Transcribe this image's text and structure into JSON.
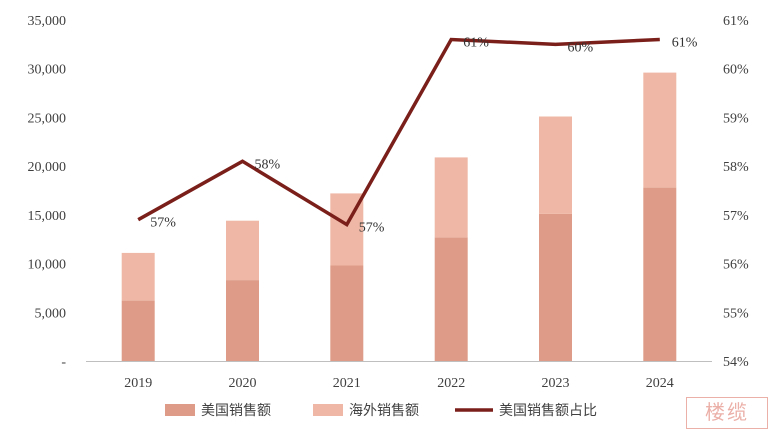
{
  "chart_data": {
    "type": "bar",
    "categories": [
      "2019",
      "2020",
      "2021",
      "2022",
      "2023",
      "2024"
    ],
    "series": [
      {
        "name": "美国销售额",
        "type": "bar",
        "stack": "sales",
        "axis": "left",
        "color": "#de9c88",
        "values": [
          6200,
          8300,
          9800,
          12700,
          15100,
          17800
        ]
      },
      {
        "name": "海外销售额",
        "type": "bar",
        "stack": "sales",
        "axis": "left",
        "color": "#efb8a6",
        "values": [
          4900,
          6100,
          7400,
          8200,
          10000,
          11800
        ]
      },
      {
        "name": "美国销售额占比",
        "type": "line",
        "axis": "right",
        "color": "#7b1f1a",
        "values": [
          56.9,
          58.1,
          56.8,
          60.6,
          60.5,
          60.6
        ],
        "labels": [
          "57%",
          "58%",
          "57%",
          "61%",
          "60%",
          "61%"
        ]
      }
    ],
    "y_left": {
      "min": 0,
      "max": 35000,
      "ticks": [
        "-",
        "5,000",
        "10,000",
        "15,000",
        "20,000",
        "25,000",
        "30,000",
        "35,000"
      ]
    },
    "y_right": {
      "min": 54,
      "max": 61,
      "ticks": [
        "54%",
        "55%",
        "56%",
        "57%",
        "58%",
        "59%",
        "60%",
        "61%"
      ]
    },
    "legend": {
      "position": "bottom"
    },
    "grid": false
  },
  "watermark": {
    "text": "楼缆"
  }
}
